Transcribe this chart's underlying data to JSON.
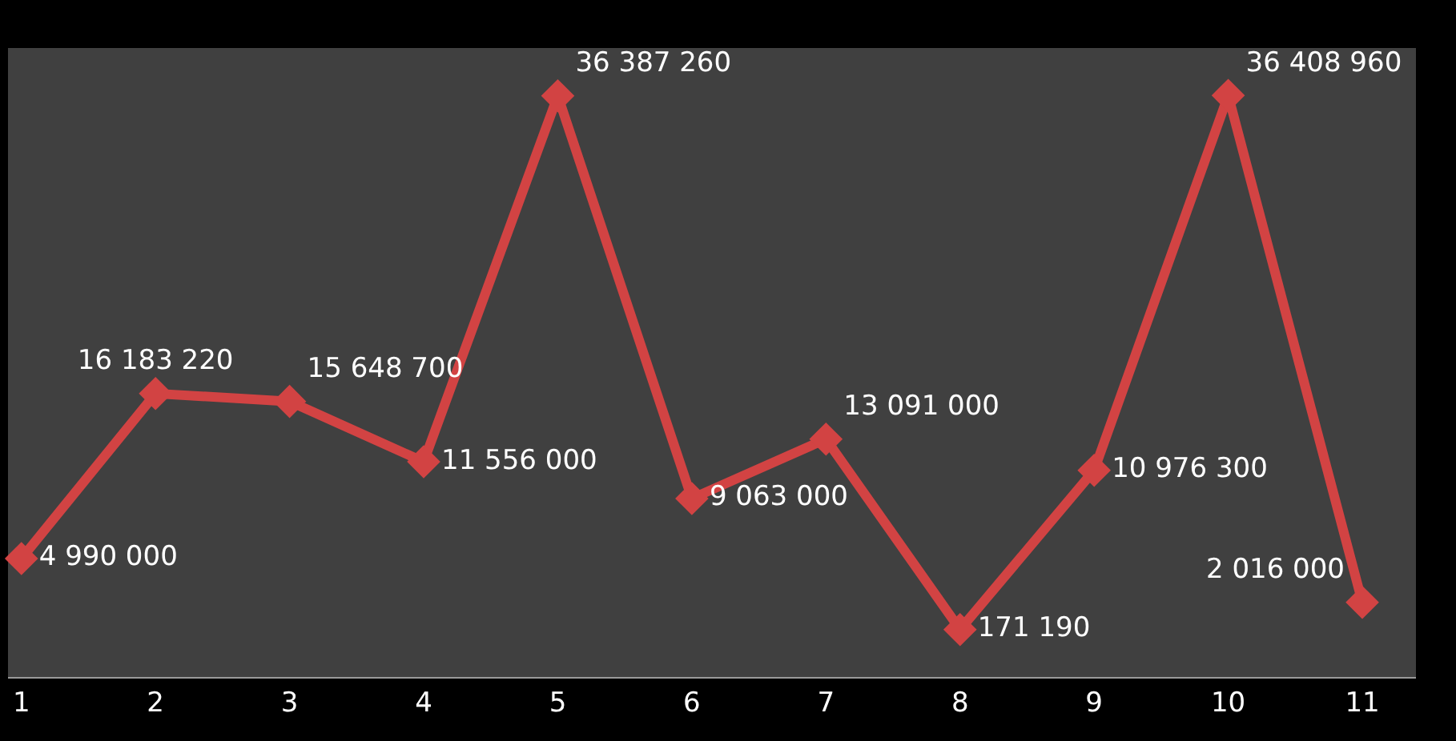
{
  "chart_data": {
    "type": "line",
    "categories": [
      "1",
      "2",
      "3",
      "4",
      "5",
      "6",
      "7",
      "8",
      "9",
      "10",
      "11"
    ],
    "series": [
      {
        "color": "#d24343",
        "values": [
          4990000,
          16183220,
          15648700,
          11556000,
          36387260,
          9063000,
          13091000,
          171190,
          10976300,
          36408960,
          2016000
        ],
        "value_labels": [
          "4 990 000",
          "16 183 220",
          "15 648 700",
          "11 556 000",
          "36 387 260",
          "9 063 000",
          "13 091 000",
          "171 190",
          "10 976 300",
          "36 408 960",
          "2 016 000"
        ]
      }
    ],
    "marker": "diamond",
    "line_style": "solid",
    "grid": false,
    "legend": false,
    "tick_labels": "x"
  }
}
